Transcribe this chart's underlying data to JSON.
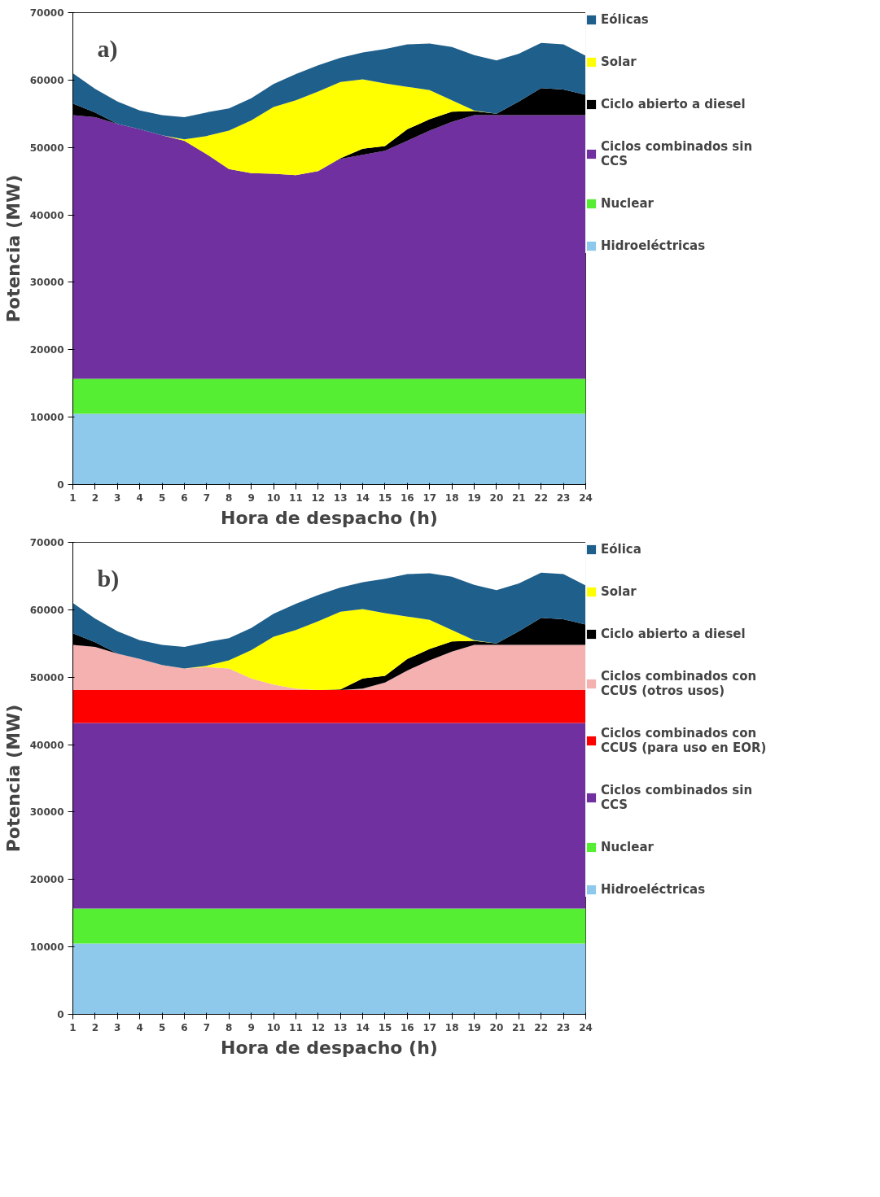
{
  "chart_data": [
    {
      "type": "area",
      "stacked": true,
      "xlabel": "Hora de despacho (h)",
      "ylabel": "Potencia (MW)",
      "annotations": [
        "a)"
      ],
      "x": [
        1,
        2,
        3,
        4,
        5,
        6,
        7,
        8,
        9,
        10,
        11,
        12,
        13,
        14,
        15,
        16,
        17,
        18,
        19,
        20,
        21,
        22,
        23,
        24
      ],
      "xlim": [
        1,
        24
      ],
      "xticks": [
        1,
        2,
        3,
        4,
        5,
        6,
        7,
        8,
        9,
        10,
        11,
        12,
        13,
        14,
        15,
        16,
        17,
        18,
        19,
        20,
        21,
        22,
        23,
        24
      ],
      "ylim": [
        0,
        70000
      ],
      "yticks": [
        0,
        10000,
        20000,
        30000,
        40000,
        50000,
        60000,
        70000
      ],
      "grid": false,
      "legend": "right",
      "series": [
        {
          "name": "Hidroeléctricas",
          "color": "#8ec8ea",
          "values": [
            10500,
            10500,
            10500,
            10500,
            10500,
            10500,
            10500,
            10500,
            10500,
            10500,
            10500,
            10500,
            10500,
            10500,
            10500,
            10500,
            10500,
            10500,
            10500,
            10500,
            10500,
            10500,
            10500,
            10500
          ]
        },
        {
          "name": "Nuclear",
          "color": "#55ee33",
          "values": [
            5200,
            5200,
            5200,
            5200,
            5200,
            5200,
            5200,
            5200,
            5200,
            5200,
            5200,
            5200,
            5200,
            5200,
            5200,
            5200,
            5200,
            5200,
            5200,
            5200,
            5200,
            5200,
            5200,
            5200
          ]
        },
        {
          "name": "Ciclos combinados sin CCS",
          "color": "#7030a0",
          "values": [
            39100,
            38800,
            37800,
            37000,
            36100,
            35300,
            33300,
            31100,
            30500,
            30400,
            30200,
            30800,
            32600,
            33200,
            33800,
            35300,
            36800,
            38100,
            39100,
            39100,
            39100,
            39100,
            39100,
            39100
          ]
        },
        {
          "name": "Ciclo abierto a diesel",
          "color": "#000000",
          "values": [
            1700,
            700,
            0,
            0,
            0,
            0,
            0,
            0,
            0,
            0,
            0,
            0,
            100,
            900,
            700,
            1700,
            1700,
            1500,
            600,
            200,
            2000,
            4000,
            3800,
            3000
          ]
        },
        {
          "name": "Solar",
          "color": "#ffff00",
          "values": [
            0,
            0,
            0,
            0,
            0,
            200,
            2700,
            5700,
            7800,
            9900,
            11100,
            11800,
            11300,
            10300,
            9300,
            6300,
            4300,
            1700,
            100,
            0,
            0,
            0,
            0,
            0
          ]
        },
        {
          "name": "Eólicas",
          "color": "#1f5f8b",
          "values": [
            4500,
            3500,
            3300,
            2800,
            3000,
            3300,
            3500,
            3300,
            3300,
            3400,
            3900,
            3900,
            3600,
            4000,
            5100,
            6300,
            6900,
            7900,
            8200,
            7900,
            7100,
            6700,
            6700,
            5800
          ]
        }
      ]
    },
    {
      "type": "area",
      "stacked": true,
      "xlabel": "Hora de despacho (h)",
      "ylabel": "Potencia (MW)",
      "annotations": [
        "b)"
      ],
      "x": [
        1,
        2,
        3,
        4,
        5,
        6,
        7,
        8,
        9,
        10,
        11,
        12,
        13,
        14,
        15,
        16,
        17,
        18,
        19,
        20,
        21,
        22,
        23,
        24
      ],
      "xlim": [
        1,
        24
      ],
      "xticks": [
        1,
        2,
        3,
        4,
        5,
        6,
        7,
        8,
        9,
        10,
        11,
        12,
        13,
        14,
        15,
        16,
        17,
        18,
        19,
        20,
        21,
        22,
        23,
        24
      ],
      "ylim": [
        0,
        70000
      ],
      "yticks": [
        0,
        10000,
        20000,
        30000,
        40000,
        50000,
        60000,
        70000
      ],
      "grid": false,
      "legend": "right",
      "series": [
        {
          "name": "Hidroeléctricas",
          "color": "#8ec8ea",
          "values": [
            10500,
            10500,
            10500,
            10500,
            10500,
            10500,
            10500,
            10500,
            10500,
            10500,
            10500,
            10500,
            10500,
            10500,
            10500,
            10500,
            10500,
            10500,
            10500,
            10500,
            10500,
            10500,
            10500,
            10500
          ]
        },
        {
          "name": "Nuclear",
          "color": "#55ee33",
          "values": [
            5200,
            5200,
            5200,
            5200,
            5200,
            5200,
            5200,
            5200,
            5200,
            5200,
            5200,
            5200,
            5200,
            5200,
            5200,
            5200,
            5200,
            5200,
            5200,
            5200,
            5200,
            5200,
            5200,
            5200
          ]
        },
        {
          "name": "Ciclos combinados sin CCS",
          "color": "#7030a0",
          "values": [
            27500,
            27500,
            27500,
            27500,
            27500,
            27500,
            27500,
            27500,
            27500,
            27500,
            27500,
            27500,
            27500,
            27500,
            27500,
            27500,
            27500,
            27500,
            27500,
            27500,
            27500,
            27500,
            27500,
            27500
          ]
        },
        {
          "name": "Ciclos combinados con CCUS (para uso en EOR)",
          "color": "#ff0000",
          "values": [
            4900,
            4900,
            4900,
            4900,
            4900,
            4900,
            4900,
            4900,
            4900,
            4900,
            4900,
            4900,
            4900,
            4900,
            4900,
            4900,
            4900,
            4900,
            4900,
            4900,
            4900,
            4900,
            4900,
            4900
          ]
        },
        {
          "name": "Ciclos combinados con CCUS (otros usos)",
          "color": "#f5b0b0",
          "values": [
            6700,
            6400,
            5400,
            4600,
            3700,
            3200,
            3400,
            3200,
            1700,
            800,
            200,
            0,
            0,
            200,
            1100,
            2900,
            4400,
            5700,
            6700,
            6700,
            6700,
            6700,
            6700,
            6700
          ]
        },
        {
          "name": "Ciclo abierto a diesel",
          "color": "#000000",
          "values": [
            1700,
            700,
            0,
            0,
            0,
            0,
            0,
            0,
            0,
            0,
            0,
            0,
            100,
            1500,
            1000,
            1700,
            1700,
            1500,
            600,
            200,
            2000,
            4000,
            3800,
            3000
          ]
        },
        {
          "name": "Solar",
          "color": "#ffff00",
          "values": [
            0,
            0,
            0,
            0,
            0,
            0,
            200,
            1200,
            4200,
            7100,
            8700,
            10200,
            11500,
            10300,
            9300,
            6300,
            4300,
            1700,
            100,
            0,
            0,
            0,
            0,
            0
          ]
        },
        {
          "name": "Eólica",
          "color": "#1f5f8b",
          "values": [
            4500,
            3500,
            3300,
            2800,
            3000,
            3200,
            3500,
            3300,
            3300,
            3400,
            3900,
            3900,
            3600,
            4000,
            5100,
            6300,
            6900,
            7900,
            8200,
            7900,
            7100,
            6700,
            6700,
            5800
          ]
        }
      ]
    }
  ]
}
